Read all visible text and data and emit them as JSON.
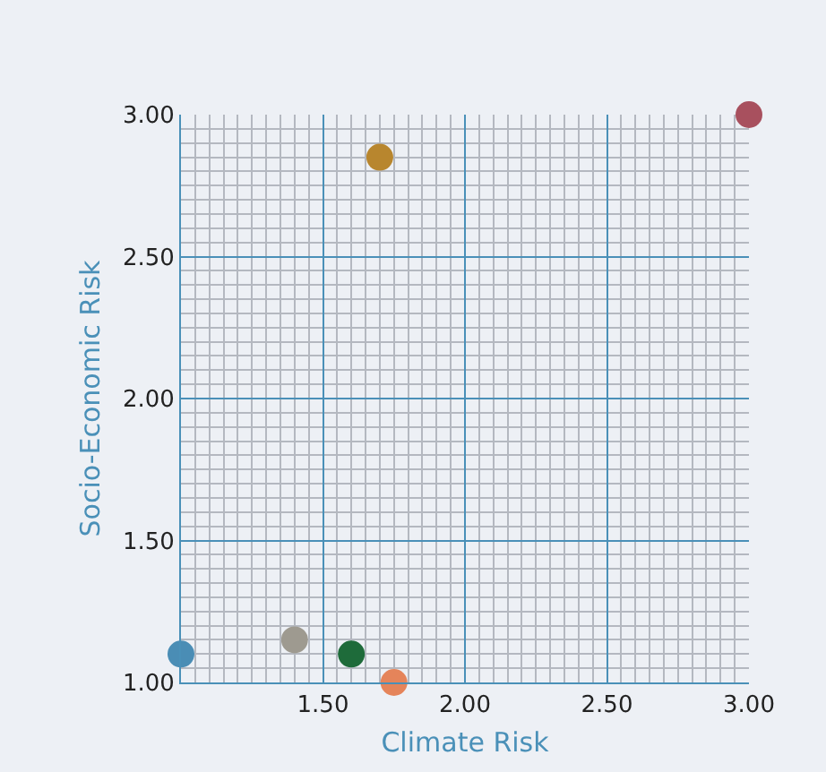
{
  "chart_data": {
    "type": "scatter",
    "xlabel": "Climate Risk",
    "ylabel": "Socio-Economic Risk",
    "x": [
      1.0,
      1.4,
      1.6,
      1.75,
      1.7,
      3.0
    ],
    "values": [
      1.1,
      1.15,
      1.1,
      1.0,
      2.85,
      3.0
    ],
    "colors": [
      "#4a8db5",
      "#9e9a90",
      "#1e6b3a",
      "#e5845a",
      "#b8862e",
      "#a8505e"
    ],
    "xlim": [
      1.0,
      3.0
    ],
    "ylim": [
      1.0,
      3.0
    ],
    "xticks": [
      {
        "value": 1.5,
        "label": "1.50"
      },
      {
        "value": 2.0,
        "label": "2.00"
      },
      {
        "value": 2.5,
        "label": "2.50"
      },
      {
        "value": 3.0,
        "label": "3.00"
      }
    ],
    "yticks": [
      {
        "value": 1.0,
        "label": "1.00"
      },
      {
        "value": 1.5,
        "label": "1.50"
      },
      {
        "value": 2.0,
        "label": "2.00"
      },
      {
        "value": 2.5,
        "label": "2.50"
      },
      {
        "value": 3.0,
        "label": "3.00"
      }
    ],
    "grid": true,
    "marker": "circle"
  }
}
